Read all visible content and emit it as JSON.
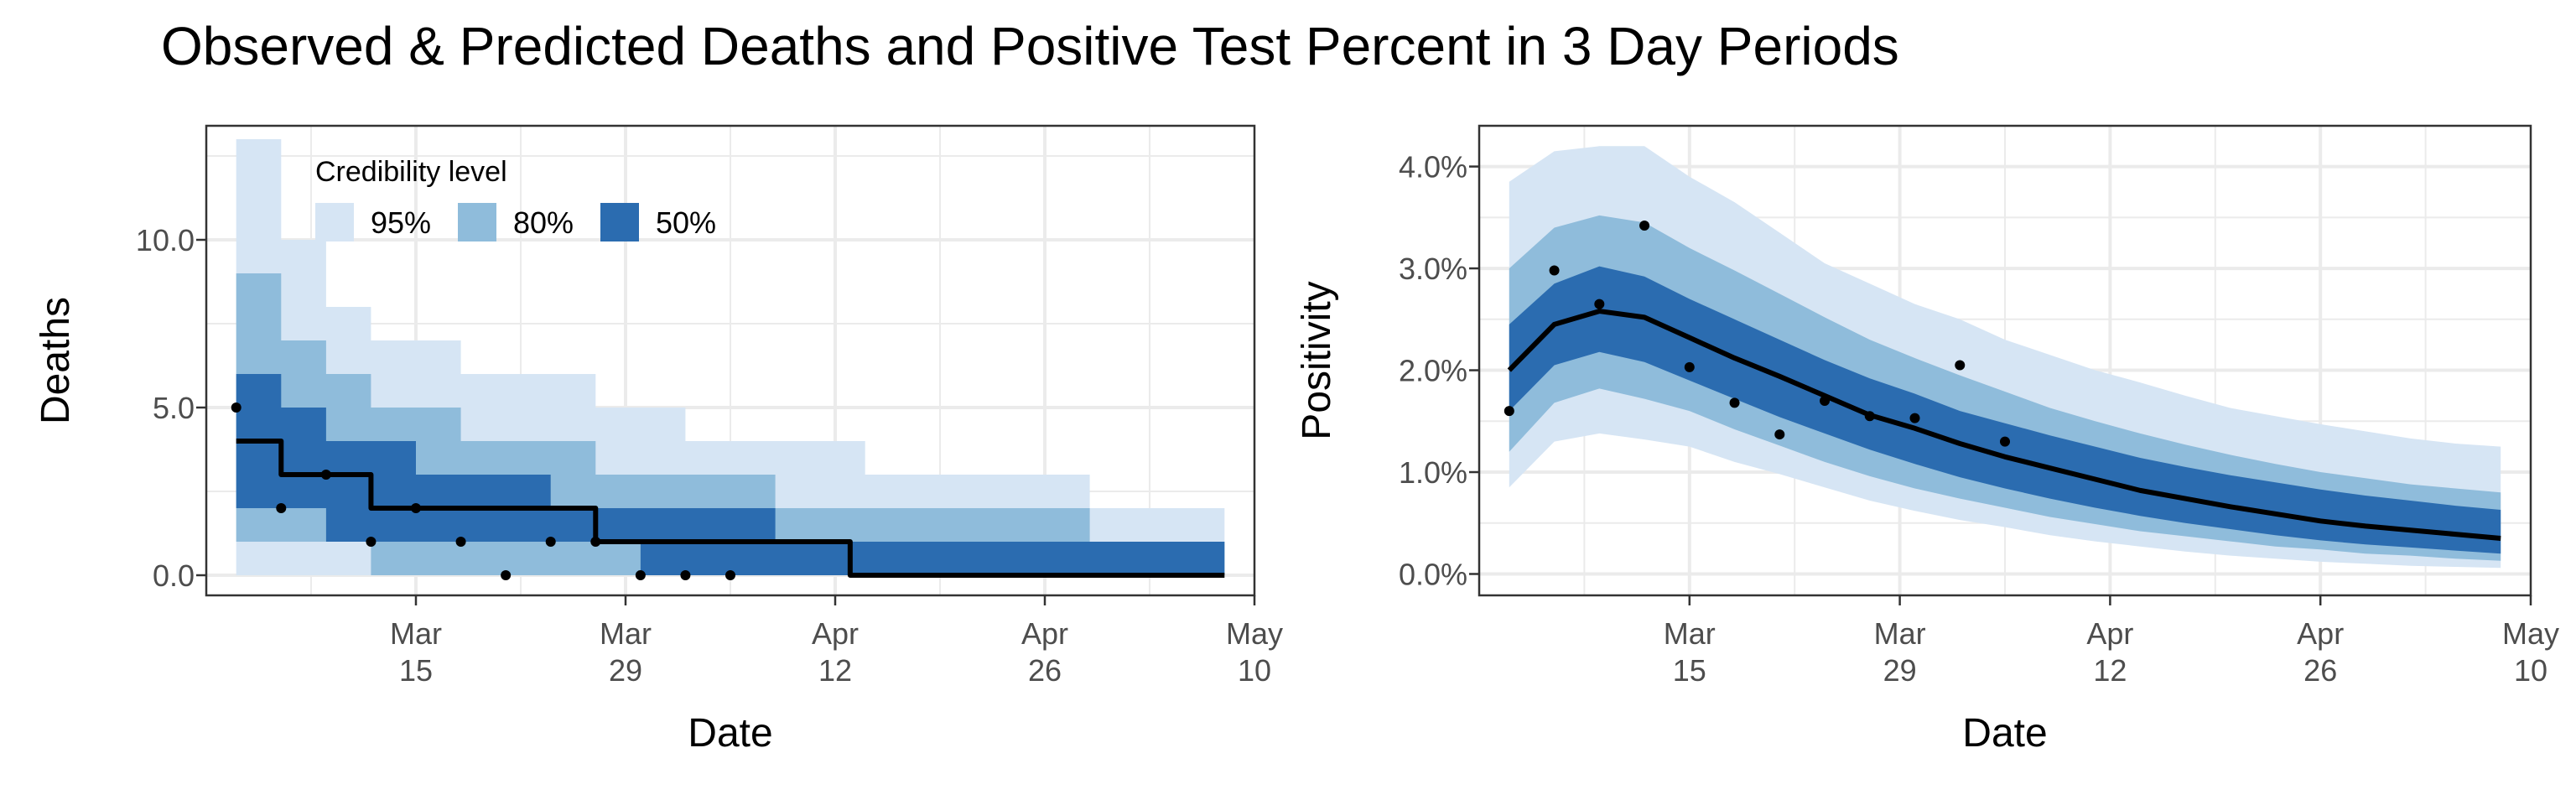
{
  "title": "Observed & Predicted Deaths and Positive Test Percent in 3 Day Periods",
  "colors": {
    "band95": "#d6e5f4",
    "band80": "#8fbcdb",
    "band50": "#2b6cb0",
    "line": "#000000",
    "point": "#000000",
    "grid": "#ebebeb",
    "border": "#333333"
  },
  "legend": {
    "title": "Credibility level",
    "items": [
      {
        "label": "95%",
        "color": "#d6e5f4"
      },
      {
        "label": "80%",
        "color": "#8fbcdb"
      },
      {
        "label": "50%",
        "color": "#2b6cb0"
      }
    ]
  },
  "chart_data": [
    {
      "type": "area",
      "xlabel": "Date",
      "ylabel": "Deaths",
      "xlim": [
        "2020-03-01",
        "2020-05-10"
      ],
      "ylim": [
        -0.6,
        13.4
      ],
      "x_ticks": [
        {
          "date": "2020-03-15",
          "label": [
            "Mar",
            "15"
          ]
        },
        {
          "date": "2020-03-29",
          "label": [
            "Mar",
            "29"
          ]
        },
        {
          "date": "2020-04-12",
          "label": [
            "Apr",
            "12"
          ]
        },
        {
          "date": "2020-04-26",
          "label": [
            "Apr",
            "26"
          ]
        },
        {
          "date": "2020-05-10",
          "label": [
            "May",
            "10"
          ]
        }
      ],
      "y_ticks": [
        {
          "value": 0,
          "label": "0.0"
        },
        {
          "value": 5,
          "label": "5.0"
        },
        {
          "value": 10,
          "label": "10.0"
        }
      ],
      "step": true,
      "band_dates": [
        "2020-03-03",
        "2020-03-06",
        "2020-03-09",
        "2020-03-12",
        "2020-03-15",
        "2020-03-18",
        "2020-03-21",
        "2020-03-24",
        "2020-03-27",
        "2020-03-30",
        "2020-04-02",
        "2020-04-05",
        "2020-04-08",
        "2020-04-11",
        "2020-04-14",
        "2020-04-17",
        "2020-04-20",
        "2020-04-23",
        "2020-04-26",
        "2020-04-29",
        "2020-05-02",
        "2020-05-05",
        "2020-05-08"
      ],
      "bands": {
        "95": {
          "lower": [
            0,
            0,
            0,
            0,
            0,
            0,
            0,
            0,
            0,
            0,
            0,
            0,
            0,
            0,
            0,
            0,
            0,
            0,
            0,
            0,
            0,
            0,
            0
          ],
          "upper": [
            13,
            10,
            8,
            7,
            7,
            6,
            6,
            6,
            5,
            5,
            4,
            4,
            4,
            4,
            3,
            3,
            3,
            3,
            3,
            2,
            2,
            2,
            2
          ]
        },
        "80": {
          "lower": [
            1,
            1,
            1,
            0,
            0,
            0,
            0,
            0,
            0,
            0,
            0,
            0,
            0,
            0,
            0,
            0,
            0,
            0,
            0,
            0,
            0,
            0,
            0
          ],
          "upper": [
            9,
            7,
            6,
            5,
            5,
            4,
            4,
            4,
            3,
            3,
            3,
            3,
            2,
            2,
            2,
            2,
            2,
            2,
            2,
            1,
            1,
            1,
            1
          ]
        },
        "50": {
          "lower": [
            2,
            2,
            1,
            1,
            1,
            1,
            1,
            1,
            1,
            0,
            0,
            0,
            0,
            0,
            0,
            0,
            0,
            0,
            0,
            0,
            0,
            0,
            0
          ],
          "upper": [
            6,
            5,
            4,
            4,
            3,
            3,
            3,
            2,
            2,
            2,
            2,
            2,
            1,
            1,
            1,
            1,
            1,
            1,
            1,
            1,
            1,
            1,
            1
          ]
        }
      },
      "median": [
        {
          "date": "2020-03-03",
          "value": 4
        },
        {
          "date": "2020-03-06",
          "value": 3
        },
        {
          "date": "2020-03-09",
          "value": 3
        },
        {
          "date": "2020-03-12",
          "value": 2
        },
        {
          "date": "2020-03-15",
          "value": 2
        },
        {
          "date": "2020-03-18",
          "value": 2
        },
        {
          "date": "2020-03-21",
          "value": 2
        },
        {
          "date": "2020-03-24",
          "value": 2
        },
        {
          "date": "2020-03-27",
          "value": 1
        },
        {
          "date": "2020-03-30",
          "value": 1
        },
        {
          "date": "2020-04-02",
          "value": 1
        },
        {
          "date": "2020-04-05",
          "value": 1
        },
        {
          "date": "2020-04-08",
          "value": 1
        },
        {
          "date": "2020-04-11",
          "value": 1
        },
        {
          "date": "2020-04-13",
          "value": 0
        },
        {
          "date": "2020-05-08",
          "value": 0
        }
      ],
      "observed": [
        {
          "date": "2020-03-03",
          "value": 5
        },
        {
          "date": "2020-03-06",
          "value": 2
        },
        {
          "date": "2020-03-09",
          "value": 3
        },
        {
          "date": "2020-03-12",
          "value": 1
        },
        {
          "date": "2020-03-15",
          "value": 2
        },
        {
          "date": "2020-03-18",
          "value": 1
        },
        {
          "date": "2020-03-21",
          "value": 0
        },
        {
          "date": "2020-03-24",
          "value": 1
        },
        {
          "date": "2020-03-27",
          "value": 1
        },
        {
          "date": "2020-03-30",
          "value": 0
        },
        {
          "date": "2020-04-02",
          "value": 0
        },
        {
          "date": "2020-04-05",
          "value": 0
        }
      ]
    },
    {
      "type": "area",
      "xlabel": "Date",
      "ylabel": "Positivity",
      "xlim": [
        "2020-03-01",
        "2020-05-10"
      ],
      "ylim": [
        -0.21,
        4.4
      ],
      "x_ticks": [
        {
          "date": "2020-03-15",
          "label": [
            "Mar",
            "15"
          ]
        },
        {
          "date": "2020-03-29",
          "label": [
            "Mar",
            "29"
          ]
        },
        {
          "date": "2020-04-12",
          "label": [
            "Apr",
            "12"
          ]
        },
        {
          "date": "2020-04-26",
          "label": [
            "Apr",
            "26"
          ]
        },
        {
          "date": "2020-05-10",
          "label": [
            "May",
            "10"
          ]
        }
      ],
      "y_ticks": [
        {
          "value": 0,
          "label": "0.0%"
        },
        {
          "value": 1,
          "label": "1.0%"
        },
        {
          "value": 2,
          "label": "2.0%"
        },
        {
          "value": 3,
          "label": "3.0%"
        },
        {
          "value": 4,
          "label": "4.0%"
        }
      ],
      "step": false,
      "band_dates": [
        "2020-03-03",
        "2020-03-06",
        "2020-03-09",
        "2020-03-12",
        "2020-03-15",
        "2020-03-18",
        "2020-03-21",
        "2020-03-24",
        "2020-03-27",
        "2020-03-30",
        "2020-04-02",
        "2020-04-05",
        "2020-04-08",
        "2020-04-11",
        "2020-04-14",
        "2020-04-17",
        "2020-04-20",
        "2020-04-23",
        "2020-04-26",
        "2020-04-29",
        "2020-05-02",
        "2020-05-05",
        "2020-05-08"
      ],
      "bands": {
        "95": {
          "lower": [
            0.85,
            1.3,
            1.38,
            1.32,
            1.25,
            1.1,
            0.98,
            0.85,
            0.72,
            0.62,
            0.53,
            0.46,
            0.38,
            0.32,
            0.27,
            0.22,
            0.18,
            0.15,
            0.12,
            0.1,
            0.08,
            0.07,
            0.06
          ],
          "upper": [
            3.85,
            4.15,
            4.2,
            4.2,
            3.9,
            3.65,
            3.35,
            3.05,
            2.85,
            2.65,
            2.5,
            2.3,
            2.15,
            2.0,
            1.88,
            1.75,
            1.63,
            1.55,
            1.47,
            1.4,
            1.33,
            1.28,
            1.25
          ]
        },
        "80": {
          "lower": [
            1.2,
            1.68,
            1.82,
            1.72,
            1.6,
            1.42,
            1.26,
            1.1,
            0.96,
            0.84,
            0.74,
            0.65,
            0.56,
            0.49,
            0.42,
            0.37,
            0.32,
            0.27,
            0.24,
            0.2,
            0.18,
            0.15,
            0.13
          ],
          "upper": [
            3.0,
            3.4,
            3.52,
            3.45,
            3.2,
            2.98,
            2.75,
            2.52,
            2.3,
            2.12,
            1.95,
            1.79,
            1.63,
            1.5,
            1.38,
            1.27,
            1.17,
            1.08,
            1.0,
            0.94,
            0.88,
            0.84,
            0.8
          ]
        },
        "50": {
          "lower": [
            1.6,
            2.05,
            2.18,
            2.08,
            1.9,
            1.72,
            1.54,
            1.38,
            1.22,
            1.08,
            0.95,
            0.84,
            0.74,
            0.65,
            0.57,
            0.5,
            0.44,
            0.38,
            0.33,
            0.29,
            0.26,
            0.23,
            0.2
          ],
          "upper": [
            2.45,
            2.85,
            3.02,
            2.92,
            2.7,
            2.5,
            2.3,
            2.1,
            1.92,
            1.77,
            1.6,
            1.48,
            1.36,
            1.25,
            1.14,
            1.05,
            0.97,
            0.9,
            0.83,
            0.77,
            0.72,
            0.67,
            0.63
          ]
        }
      },
      "median": [
        {
          "date": "2020-03-03",
          "value": 2.0
        },
        {
          "date": "2020-03-06",
          "value": 2.45
        },
        {
          "date": "2020-03-09",
          "value": 2.58
        },
        {
          "date": "2020-03-12",
          "value": 2.52
        },
        {
          "date": "2020-03-15",
          "value": 2.32
        },
        {
          "date": "2020-03-18",
          "value": 2.12
        },
        {
          "date": "2020-03-21",
          "value": 1.94
        },
        {
          "date": "2020-03-24",
          "value": 1.75
        },
        {
          "date": "2020-03-27",
          "value": 1.56
        },
        {
          "date": "2020-03-30",
          "value": 1.43
        },
        {
          "date": "2020-04-02",
          "value": 1.28
        },
        {
          "date": "2020-04-05",
          "value": 1.15
        },
        {
          "date": "2020-04-08",
          "value": 1.04
        },
        {
          "date": "2020-04-11",
          "value": 0.93
        },
        {
          "date": "2020-04-14",
          "value": 0.82
        },
        {
          "date": "2020-04-17",
          "value": 0.74
        },
        {
          "date": "2020-04-20",
          "value": 0.66
        },
        {
          "date": "2020-04-23",
          "value": 0.59
        },
        {
          "date": "2020-04-26",
          "value": 0.52
        },
        {
          "date": "2020-04-29",
          "value": 0.47
        },
        {
          "date": "2020-05-02",
          "value": 0.43
        },
        {
          "date": "2020-05-05",
          "value": 0.39
        },
        {
          "date": "2020-05-08",
          "value": 0.35
        }
      ],
      "observed": [
        {
          "date": "2020-03-03",
          "value": 1.6
        },
        {
          "date": "2020-03-06",
          "value": 2.98
        },
        {
          "date": "2020-03-09",
          "value": 2.65
        },
        {
          "date": "2020-03-12",
          "value": 3.42
        },
        {
          "date": "2020-03-15",
          "value": 2.03
        },
        {
          "date": "2020-03-18",
          "value": 1.68
        },
        {
          "date": "2020-03-21",
          "value": 1.37
        },
        {
          "date": "2020-03-24",
          "value": 1.7
        },
        {
          "date": "2020-03-27",
          "value": 1.55
        },
        {
          "date": "2020-03-30",
          "value": 1.53
        },
        {
          "date": "2020-04-02",
          "value": 2.05
        },
        {
          "date": "2020-04-05",
          "value": 1.3
        }
      ]
    }
  ]
}
